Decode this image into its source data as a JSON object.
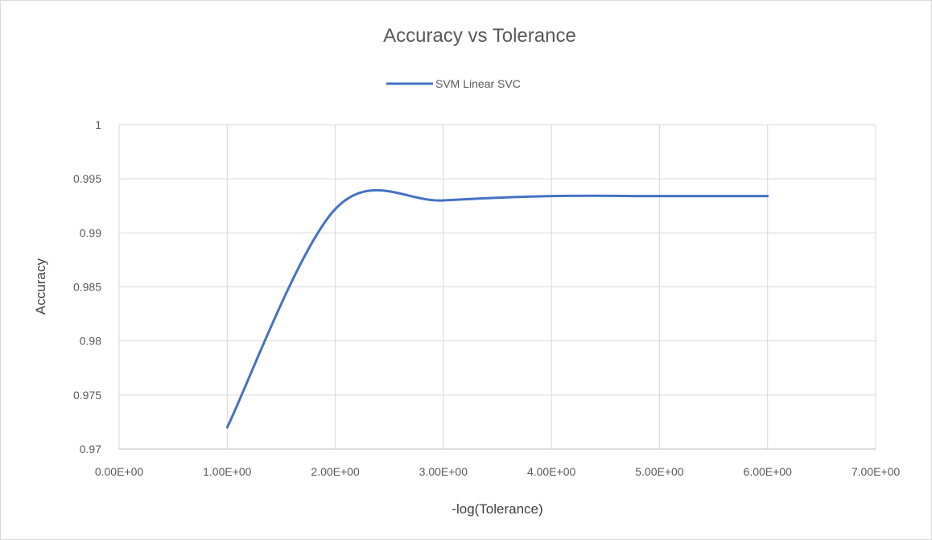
{
  "chart_data": {
    "type": "line",
    "title": "Accuracy vs Tolerance",
    "xlabel": "-log(Tolerance)",
    "ylabel": "Accuracy",
    "xlim": [
      0,
      7
    ],
    "ylim": [
      0.97,
      1
    ],
    "x_ticks": [
      0,
      1,
      2,
      3,
      4,
      5,
      6,
      7
    ],
    "x_tick_labels": [
      "0.00E+00",
      "1.00E+00",
      "2.00E+00",
      "3.00E+00",
      "4.00E+00",
      "5.00E+00",
      "6.00E+00",
      "7.00E+00"
    ],
    "y_ticks": [
      0.97,
      0.975,
      0.98,
      0.985,
      0.99,
      0.995,
      1
    ],
    "y_tick_labels": [
      "0.97",
      "0.975",
      "0.98",
      "0.985",
      "0.99",
      "0.995",
      "1"
    ],
    "grid": true,
    "legend_position": "top",
    "smooth": true,
    "series": [
      {
        "name": "SVM Linear SVC",
        "color": "#4472c4",
        "x": [
          1,
          2,
          3,
          4,
          5,
          6
        ],
        "y": [
          0.972,
          0.9922,
          0.993,
          0.9934,
          0.9934,
          0.9934
        ]
      }
    ]
  }
}
